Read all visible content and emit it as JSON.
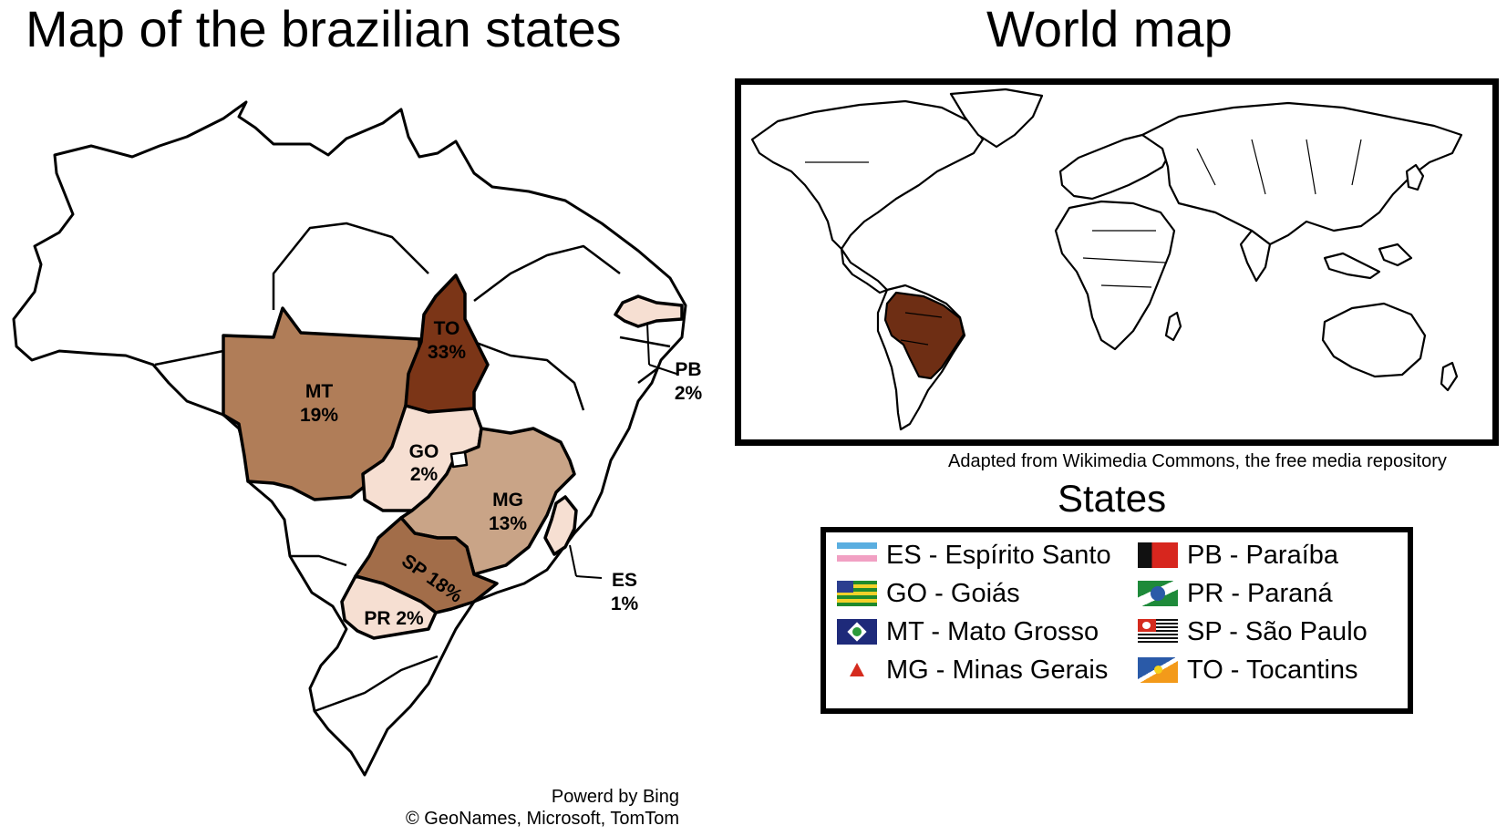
{
  "left_panel": {
    "title": "Map of the brazilian states",
    "states": [
      {
        "code": "TO",
        "value": "33%",
        "color": "#7b3517"
      },
      {
        "code": "MT",
        "value": "19%",
        "color": "#b07d58"
      },
      {
        "code": "SP",
        "value": "18%",
        "color": "#a26d49"
      },
      {
        "code": "MG",
        "value": "13%",
        "color": "#c9a487"
      },
      {
        "code": "GO",
        "value": "2%",
        "color": "#f6dfd2"
      },
      {
        "code": "PR",
        "value": "2%",
        "color": "#f6dfd2"
      },
      {
        "code": "PB",
        "value": "2%",
        "color": "#f6dfd2"
      },
      {
        "code": "ES",
        "value": "1%",
        "color": "#f6dfd2"
      }
    ],
    "labels": {
      "to": "TO",
      "to_val": "33%",
      "mt": "MT",
      "mt_val": "19%",
      "go": "GO",
      "go_val": "2%",
      "mg": "MG",
      "mg_val": "13%",
      "sp": "SP 18%",
      "pr": "PR 2%",
      "pb": "PB",
      "pb_val": "2%",
      "es": "ES",
      "es_val": "1%"
    },
    "credit_line1": "Powerd by Bing",
    "credit_line2": "© GeoNames, Microsoft, TomTom"
  },
  "right_panel": {
    "title": "World map",
    "highlight_color": "#6e2e14",
    "credit": "Adapted from Wikimedia Commons, the free media repository",
    "legend_title": "States",
    "legend": [
      {
        "label": "ES - Espírito Santo",
        "flag": "es-flag-icon"
      },
      {
        "label": "GO - Goiás",
        "flag": "go-flag-icon"
      },
      {
        "label": "MT - Mato Grosso",
        "flag": "mt-flag-icon"
      },
      {
        "label": "MG - Minas Gerais",
        "flag": "mg-flag-icon"
      },
      {
        "label": "PB - Paraíba",
        "flag": "pb-flag-icon"
      },
      {
        "label": "PR - Paraná",
        "flag": "pr-flag-icon"
      },
      {
        "label": "SP - São Paulo",
        "flag": "sp-flag-icon"
      },
      {
        "label": "TO - Tocantins",
        "flag": "to-flag-icon"
      }
    ]
  }
}
